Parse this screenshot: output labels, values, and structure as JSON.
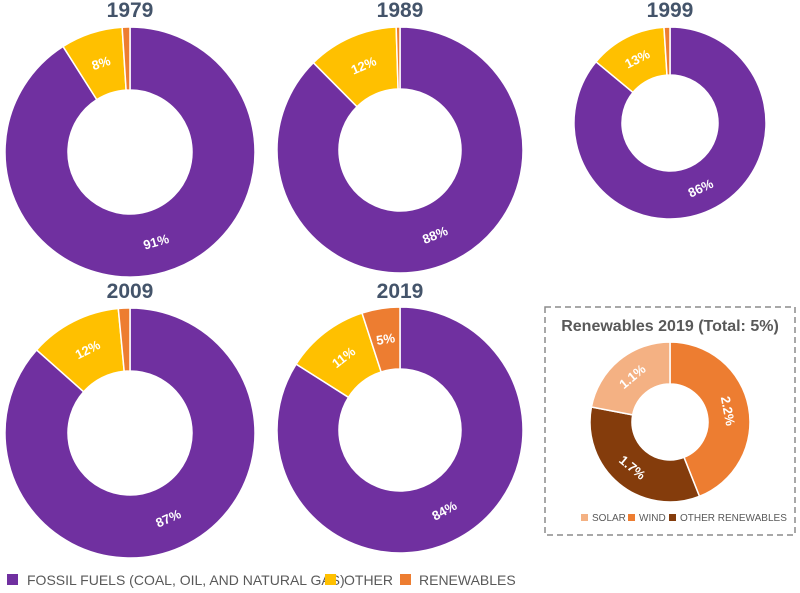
{
  "chart_data": [
    {
      "type": "pie",
      "variant": "donut",
      "title": "1979",
      "categories": [
        "FOSSIL FUELS (COAL, OIL, AND NATURAL GAS)",
        "OTHER",
        "RENEWABLES"
      ],
      "values": [
        91,
        8,
        1
      ],
      "labels": [
        "91%",
        "8%",
        ""
      ]
    },
    {
      "type": "pie",
      "variant": "donut",
      "title": "1989",
      "categories": [
        "FOSSIL FUELS (COAL, OIL, AND NATURAL GAS)",
        "OTHER",
        "RENEWABLES"
      ],
      "values": [
        88,
        12,
        0.5
      ],
      "labels": [
        "88%",
        "12%",
        ""
      ]
    },
    {
      "type": "pie",
      "variant": "donut",
      "title": "1999",
      "categories": [
        "FOSSIL FUELS (COAL, OIL, AND NATURAL GAS)",
        "OTHER",
        "RENEWABLES"
      ],
      "values": [
        86,
        13,
        1
      ],
      "labels": [
        "86%",
        "13%",
        ""
      ]
    },
    {
      "type": "pie",
      "variant": "donut",
      "title": "2009",
      "categories": [
        "FOSSIL FUELS (COAL, OIL, AND NATURAL GAS)",
        "OTHER",
        "RENEWABLES"
      ],
      "values": [
        87,
        12,
        1.5
      ],
      "labels": [
        "87%",
        "12%",
        ""
      ]
    },
    {
      "type": "pie",
      "variant": "donut",
      "title": "2019",
      "categories": [
        "FOSSIL FUELS (COAL, OIL, AND NATURAL GAS)",
        "OTHER",
        "RENEWABLES"
      ],
      "values": [
        84,
        11,
        5
      ],
      "labels": [
        "84%",
        "11%",
        "5%"
      ]
    },
    {
      "type": "pie",
      "variant": "donut",
      "title": "Renewables 2019 (Total: 5%)",
      "categories": [
        "WIND",
        "OTHER RENEWABLES",
        "SOLAR"
      ],
      "values": [
        2.2,
        1.7,
        1.1
      ],
      "labels": [
        "2.2%",
        "1.7%",
        "1.1%"
      ]
    }
  ],
  "legend": {
    "position": "bottom",
    "items": [
      "FOSSIL FUELS (COAL, OIL, AND NATURAL GAS)",
      "OTHER",
      "RENEWABLES"
    ]
  },
  "inset_legend": {
    "position": "bottom",
    "items": [
      "SOLAR",
      "WIND",
      "OTHER RENEWABLES"
    ]
  },
  "colors": {
    "FOSSIL FUELS (COAL, OIL, AND NATURAL GAS)": "#7030a0",
    "OTHER": "#ffc000",
    "RENEWABLES": "#ed7d31",
    "SOLAR": "#f4b183",
    "WIND": "#ed7d31",
    "OTHER RENEWABLES": "#843c0c"
  }
}
